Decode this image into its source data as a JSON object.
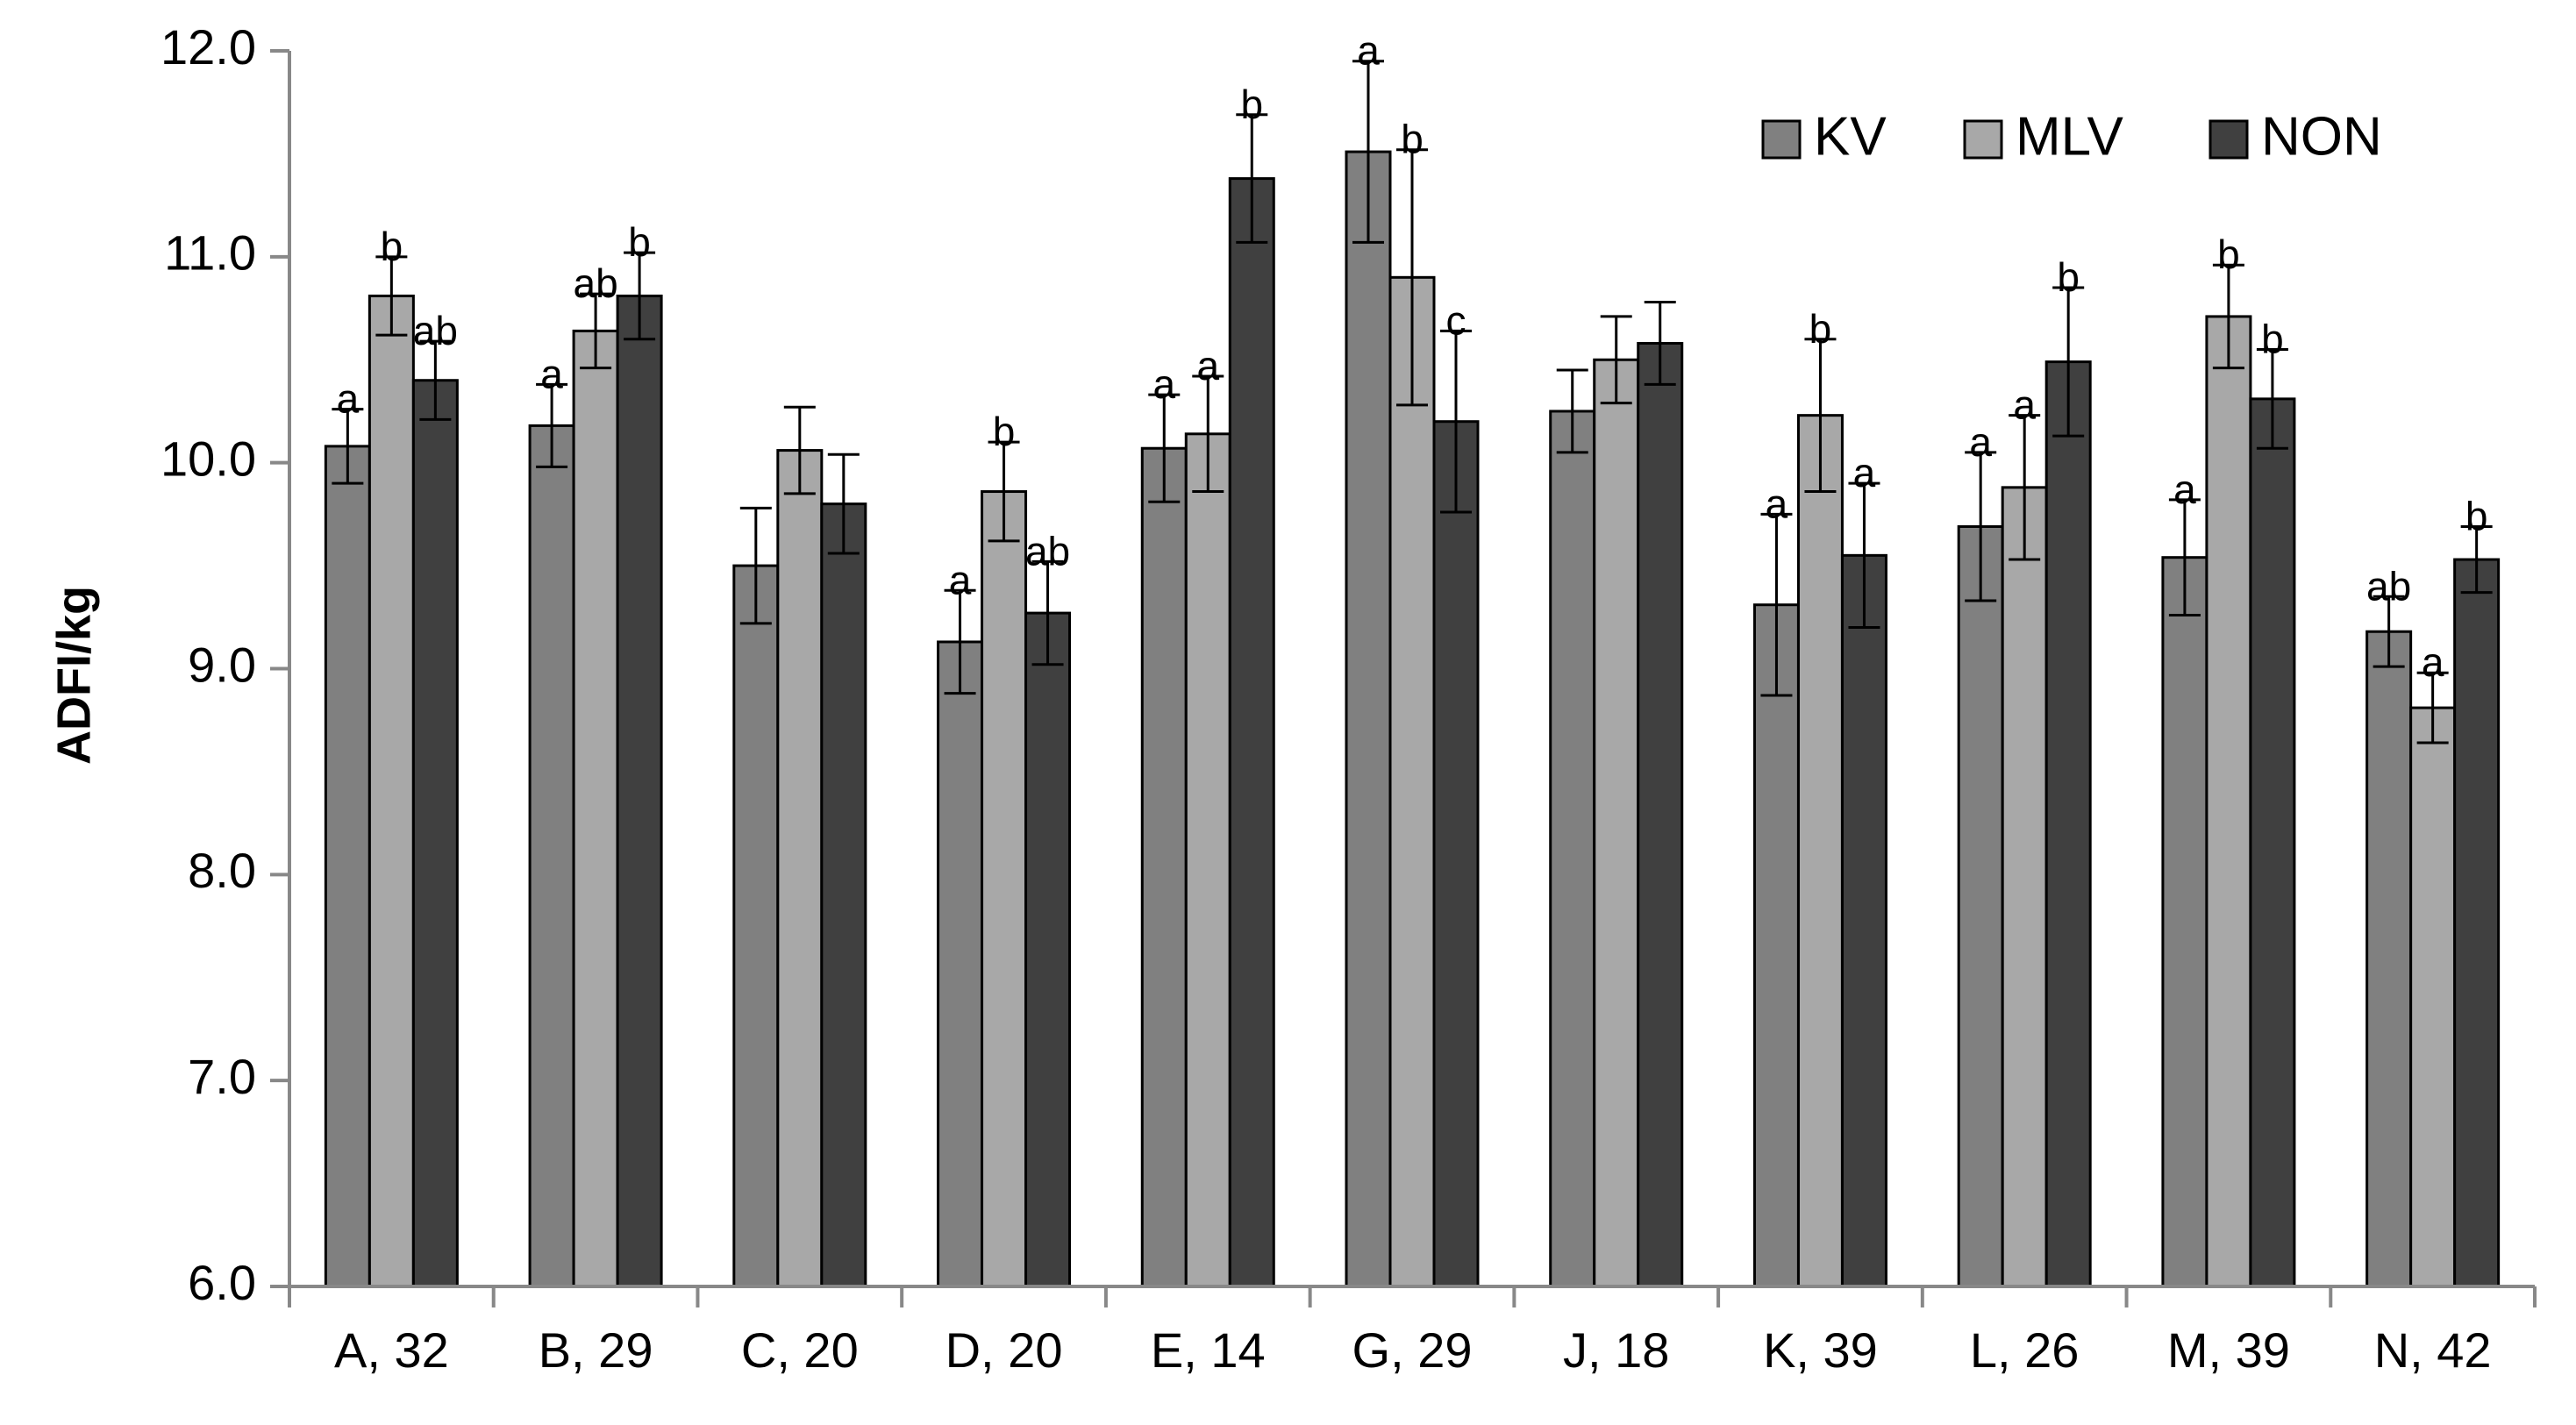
{
  "chart_data": {
    "type": "bar",
    "title": "",
    "xlabel": "",
    "ylabel": "ADFI/kg",
    "ylim": [
      6.0,
      12.0
    ],
    "yticks": [
      "6.0",
      "7.0",
      "8.0",
      "9.0",
      "10.0",
      "11.0",
      "12.0"
    ],
    "grid": false,
    "legend_position": "top-right",
    "categories": [
      "A, 32",
      "B, 29",
      "C, 20",
      "D, 20",
      "E, 14",
      "G, 29",
      "J, 18",
      "K, 39",
      "L, 26",
      "M, 39",
      "N, 42"
    ],
    "series": [
      {
        "name": "KV",
        "color": "#808080",
        "values": [
          10.08,
          10.18,
          9.5,
          9.13,
          10.07,
          11.51,
          10.25,
          9.31,
          9.69,
          9.54,
          9.18
        ],
        "errors": [
          0.18,
          0.2,
          0.28,
          0.25,
          0.26,
          0.44,
          0.2,
          0.44,
          0.36,
          0.28,
          0.17
        ],
        "labels": [
          "a",
          "a",
          "",
          "a",
          "a",
          "a",
          "",
          "a",
          "a",
          "a",
          "ab"
        ]
      },
      {
        "name": "MLV",
        "color": "#a8a8a8",
        "values": [
          10.81,
          10.64,
          10.06,
          9.86,
          10.14,
          10.9,
          10.5,
          10.23,
          9.88,
          10.71,
          8.81
        ],
        "errors": [
          0.19,
          0.18,
          0.21,
          0.24,
          0.28,
          0.62,
          0.21,
          0.37,
          0.35,
          0.25,
          0.17
        ],
        "labels": [
          "b",
          "ab",
          "",
          "b",
          "a",
          "b",
          "",
          "b",
          "a",
          "b",
          "a"
        ]
      },
      {
        "name": "NON",
        "color": "#404040",
        "values": [
          10.4,
          10.81,
          9.8,
          9.27,
          11.38,
          10.2,
          10.58,
          9.55,
          10.49,
          10.31,
          9.53
        ],
        "errors": [
          0.19,
          0.21,
          0.24,
          0.25,
          0.31,
          0.44,
          0.2,
          0.35,
          0.36,
          0.24,
          0.16
        ],
        "labels": [
          "ab",
          "b",
          "",
          "ab",
          "b",
          "c",
          "",
          "a",
          "b",
          "b",
          "b"
        ]
      }
    ]
  }
}
